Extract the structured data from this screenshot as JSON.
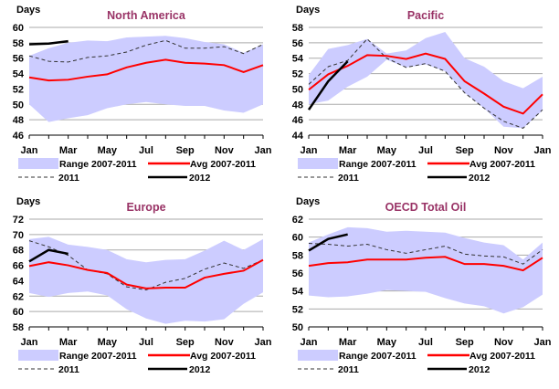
{
  "colors": {
    "range": "#ccccff",
    "avg": "#ff0000",
    "y2011": "#333333",
    "y2012": "#000000",
    "title": "#993366",
    "grid": "#aaaaaa"
  },
  "chart_data": [
    {
      "type": "line",
      "title": "North America",
      "ylabel": "Days",
      "ylim": [
        46,
        60
      ],
      "yticks": [
        46,
        48,
        50,
        52,
        54,
        56,
        58,
        60
      ],
      "x_tick_labels": [
        "Jan",
        "Mar",
        "May",
        "Jul",
        "Sep",
        "Nov",
        "Jan"
      ],
      "legend": {
        "range": "Range 2007-2011",
        "avg": "Avg 2007-2011",
        "y2011": "2011",
        "y2012": "2012"
      },
      "range_high": [
        56.3,
        57.3,
        58.0,
        58.3,
        58.2,
        58.7,
        58.8,
        58.9,
        58.6,
        58.1,
        57.8,
        56.7,
        57.8
      ],
      "range_low": [
        50.0,
        47.7,
        48.2,
        48.6,
        49.5,
        50.0,
        50.3,
        50.0,
        49.8,
        49.8,
        49.2,
        48.9,
        50.0
      ],
      "avg": [
        53.5,
        53.1,
        53.2,
        53.6,
        53.9,
        54.8,
        55.4,
        55.8,
        55.4,
        55.3,
        55.1,
        54.2,
        55.1
      ],
      "y2011": [
        56.3,
        55.6,
        55.5,
        56.1,
        56.3,
        56.8,
        57.7,
        58.3,
        57.3,
        57.3,
        57.5,
        56.6,
        57.8
      ],
      "y2012": [
        57.8,
        57.9,
        58.2
      ]
    },
    {
      "type": "line",
      "title": "Pacific",
      "ylabel": "Days",
      "ylim": [
        44,
        58
      ],
      "yticks": [
        44,
        46,
        48,
        50,
        52,
        54,
        56,
        58
      ],
      "x_tick_labels": [
        "Jan",
        "Mar",
        "May",
        "Jul",
        "Sep",
        "Nov",
        "Jan"
      ],
      "legend": {
        "range": "Range 2007-2011",
        "avg": "Avg 2007-2011",
        "y2011": "2011",
        "y2012": "2012"
      },
      "range_high": [
        51.8,
        55.2,
        55.7,
        56.5,
        54.6,
        55.0,
        56.6,
        57.4,
        54.0,
        52.9,
        51.0,
        50.1,
        51.6
      ],
      "range_low": [
        48.0,
        48.5,
        50.3,
        51.6,
        53.8,
        52.8,
        53.2,
        52.3,
        49.5,
        47.5,
        45.1,
        44.9,
        47.2
      ],
      "avg": [
        49.9,
        51.9,
        53.0,
        54.4,
        54.3,
        53.9,
        54.6,
        53.9,
        51.0,
        49.4,
        47.7,
        46.8,
        49.3
      ],
      "y2011": [
        50.6,
        52.9,
        53.7,
        56.5,
        54.0,
        52.8,
        53.3,
        52.3,
        49.5,
        47.5,
        45.8,
        44.9,
        47.3
      ],
      "y2012": [
        47.3,
        51.0,
        53.6
      ]
    },
    {
      "type": "line",
      "title": "Europe",
      "ylabel": "Days",
      "ylim": [
        58,
        72
      ],
      "yticks": [
        58,
        60,
        62,
        64,
        66,
        68,
        70,
        72
      ],
      "x_tick_labels": [
        "Jan",
        "Mar",
        "May",
        "Jul",
        "Sep",
        "Nov",
        "Jan"
      ],
      "legend": {
        "range": "Range 2007-2011",
        "avg": "Avg 2007-2011",
        "y2011": "2011",
        "y2012": "2012"
      },
      "range_high": [
        69.4,
        69.7,
        68.7,
        68.4,
        68.0,
        66.8,
        66.4,
        66.7,
        66.8,
        67.9,
        69.2,
        68.0,
        69.4
      ],
      "range_low": [
        62.4,
        61.9,
        62.4,
        62.6,
        62.1,
        60.3,
        59.1,
        58.4,
        58.8,
        58.7,
        59.0,
        61.0,
        62.5
      ],
      "avg": [
        65.9,
        66.4,
        66.0,
        65.4,
        65.0,
        63.5,
        63.0,
        63.1,
        63.1,
        64.4,
        64.9,
        65.3,
        66.7
      ],
      "y2011": [
        69.2,
        68.4,
        67.3,
        65.4,
        64.9,
        63.2,
        62.8,
        63.8,
        64.3,
        65.5,
        66.3,
        65.6,
        66.7
      ],
      "y2012": [
        66.5,
        68.0,
        67.5
      ]
    },
    {
      "type": "line",
      "title": "OECD Total Oil",
      "ylabel": "Days",
      "ylim": [
        50,
        62
      ],
      "yticks": [
        50,
        52,
        54,
        56,
        58,
        60,
        62
      ],
      "x_tick_labels": [
        "Jan",
        "Mar",
        "May",
        "Jul",
        "Sep",
        "Nov",
        "Jan"
      ],
      "legend": {
        "range": "Range 2007-2011",
        "avg": "Avg 2007-2011",
        "y2011": "2011",
        "y2012": "2012"
      },
      "range_high": [
        59.4,
        60.3,
        61.1,
        61.0,
        60.6,
        60.7,
        60.6,
        60.5,
        59.9,
        59.4,
        59.1,
        57.5,
        59.4
      ],
      "range_low": [
        53.5,
        53.3,
        53.4,
        53.7,
        54.1,
        54.0,
        53.9,
        53.2,
        52.6,
        52.3,
        51.5,
        52.2,
        53.6
      ],
      "avg": [
        56.8,
        57.1,
        57.2,
        57.5,
        57.5,
        57.5,
        57.7,
        57.8,
        57.0,
        57.0,
        56.8,
        56.3,
        57.7
      ],
      "y2011": [
        59.3,
        59.2,
        59.0,
        59.2,
        58.6,
        58.2,
        58.6,
        59.0,
        58.1,
        57.9,
        57.8,
        57.0,
        58.6
      ],
      "y2012": [
        58.5,
        59.8,
        60.3
      ]
    }
  ]
}
